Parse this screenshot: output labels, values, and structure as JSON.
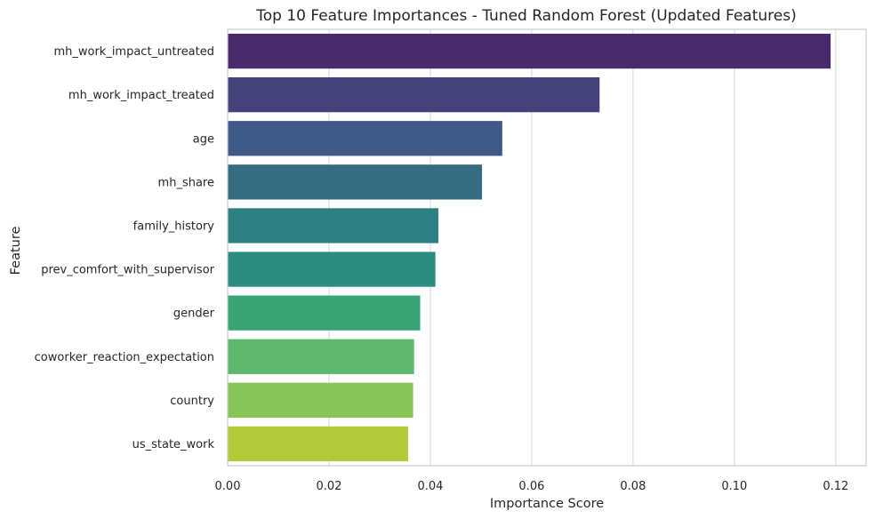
{
  "chart_data": {
    "type": "bar",
    "orientation": "horizontal",
    "title": "Top 10 Feature Importances - Tuned Random Forest (Updated Features)",
    "xlabel": "Importance Score",
    "ylabel": "Feature",
    "xlim": [
      0,
      0.126
    ],
    "xticks": [
      0.0,
      0.02,
      0.04,
      0.06,
      0.08,
      0.1,
      0.12
    ],
    "xtick_labels": [
      "0.00",
      "0.02",
      "0.04",
      "0.06",
      "0.08",
      "0.10",
      "0.12"
    ],
    "grid": "vertical",
    "categories": [
      "mh_work_impact_untreated",
      "mh_work_impact_treated",
      "age",
      "mh_share",
      "family_history",
      "prev_comfort_with_supervisor",
      "gender",
      "coworker_reaction_expectation",
      "country",
      "us_state_work"
    ],
    "values": [
      0.119,
      0.0734,
      0.0542,
      0.0502,
      0.0416,
      0.041,
      0.038,
      0.0368,
      0.0366,
      0.0356
    ],
    "colors": [
      "#482a6c",
      "#45417b",
      "#3f5a88",
      "#366c82",
      "#2e7f82",
      "#2c8c7f",
      "#3ba476",
      "#5fb76f",
      "#89c458",
      "#b2c93a"
    ],
    "palette": "viridis"
  }
}
